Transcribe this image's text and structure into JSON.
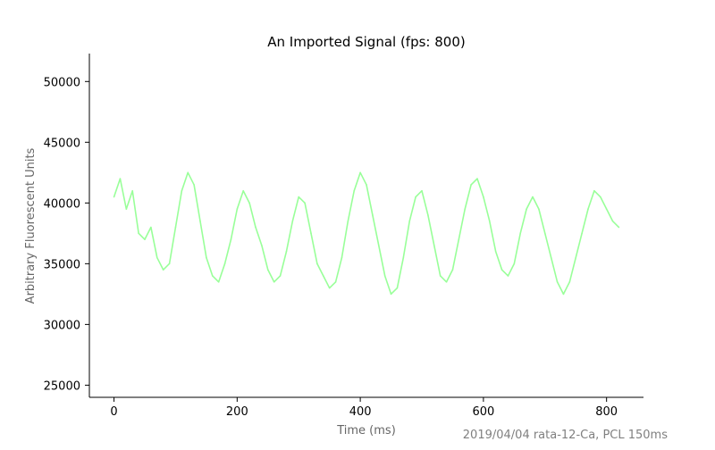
{
  "chart_data": {
    "type": "line",
    "title": "An Imported Signal (fps: 800)",
    "xlabel": "Time (ms)",
    "ylabel": "Arbitrary Fluorescent Units",
    "annotation": "2019/04/04 rata-12-Ca, PCL 150ms",
    "xlim": [
      -40,
      860
    ],
    "ylim": [
      24000,
      52300
    ],
    "x_ticks": [
      0,
      200,
      400,
      600,
      800
    ],
    "y_ticks": [
      25000,
      30000,
      35000,
      40000,
      45000,
      50000
    ],
    "grid": false,
    "series": [
      {
        "color": "#99ff99",
        "x": [
          0,
          10,
          20,
          30,
          40,
          50,
          60,
          70,
          80,
          90,
          100,
          110,
          120,
          130,
          140,
          150,
          160,
          170,
          180,
          190,
          200,
          210,
          220,
          230,
          240,
          250,
          260,
          270,
          280,
          290,
          300,
          310,
          320,
          330,
          340,
          350,
          360,
          370,
          380,
          390,
          400,
          410,
          420,
          430,
          440,
          450,
          460,
          470,
          480,
          490,
          500,
          510,
          520,
          530,
          540,
          550,
          560,
          570,
          580,
          590,
          600,
          610,
          620,
          630,
          640,
          650,
          660,
          670,
          680,
          690,
          700,
          710,
          720,
          730,
          740,
          750,
          760,
          770,
          780,
          790,
          800,
          810,
          820
        ],
        "y": [
          40500,
          42000,
          39500,
          41000,
          37500,
          37000,
          38000,
          35500,
          34500,
          35000,
          38000,
          41000,
          42500,
          41500,
          38500,
          35500,
          34000,
          33500,
          35000,
          37000,
          39500,
          41000,
          40000,
          38000,
          36500,
          34500,
          33500,
          34000,
          36000,
          38500,
          40500,
          40000,
          37500,
          35000,
          34000,
          33000,
          33500,
          35500,
          38500,
          41000,
          42500,
          41500,
          39000,
          36500,
          34000,
          32500,
          33000,
          35500,
          38500,
          40500,
          41000,
          39000,
          36500,
          34000,
          33500,
          34500,
          37000,
          39500,
          41500,
          42000,
          40500,
          38500,
          36000,
          34500,
          34000,
          35000,
          37500,
          39500,
          40500,
          39500,
          37500,
          35500,
          33500,
          32500,
          33500,
          35500,
          37500,
          39500,
          41000,
          40500,
          39500,
          38500,
          38000
        ]
      }
    ]
  }
}
